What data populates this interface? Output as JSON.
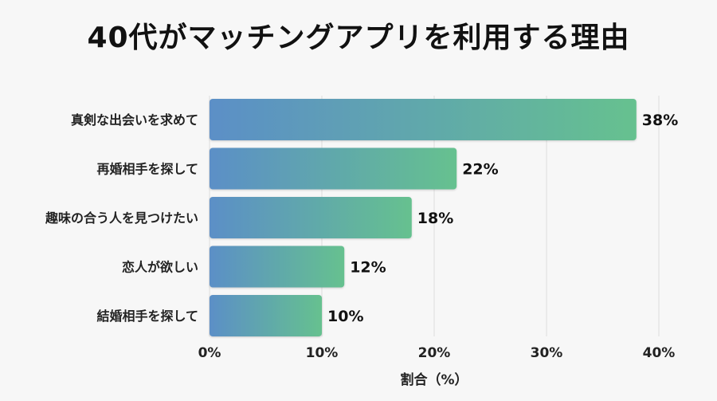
{
  "chart_data": {
    "type": "bar",
    "orientation": "horizontal",
    "title": "40代がマッチングアプリを利用する理由",
    "categories": [
      "真剣な出会いを求めて",
      "再婚相手を探して",
      "趣味の合う人を見つけたい",
      "恋人が欲しい",
      "結婚相手を探して"
    ],
    "values": [
      38,
      22,
      18,
      12,
      10
    ],
    "value_labels": [
      "38%",
      "22%",
      "18%",
      "12%",
      "10%"
    ],
    "xlabel": "割合（%）",
    "ylabel": "",
    "xlim": [
      0,
      40
    ],
    "xticks": [
      0,
      10,
      20,
      30,
      40
    ],
    "xtick_labels": [
      "0%",
      "10%",
      "20%",
      "30%",
      "40%"
    ],
    "grid": true,
    "bar_gradient": [
      "#5b8fc7",
      "#66c18f"
    ]
  }
}
